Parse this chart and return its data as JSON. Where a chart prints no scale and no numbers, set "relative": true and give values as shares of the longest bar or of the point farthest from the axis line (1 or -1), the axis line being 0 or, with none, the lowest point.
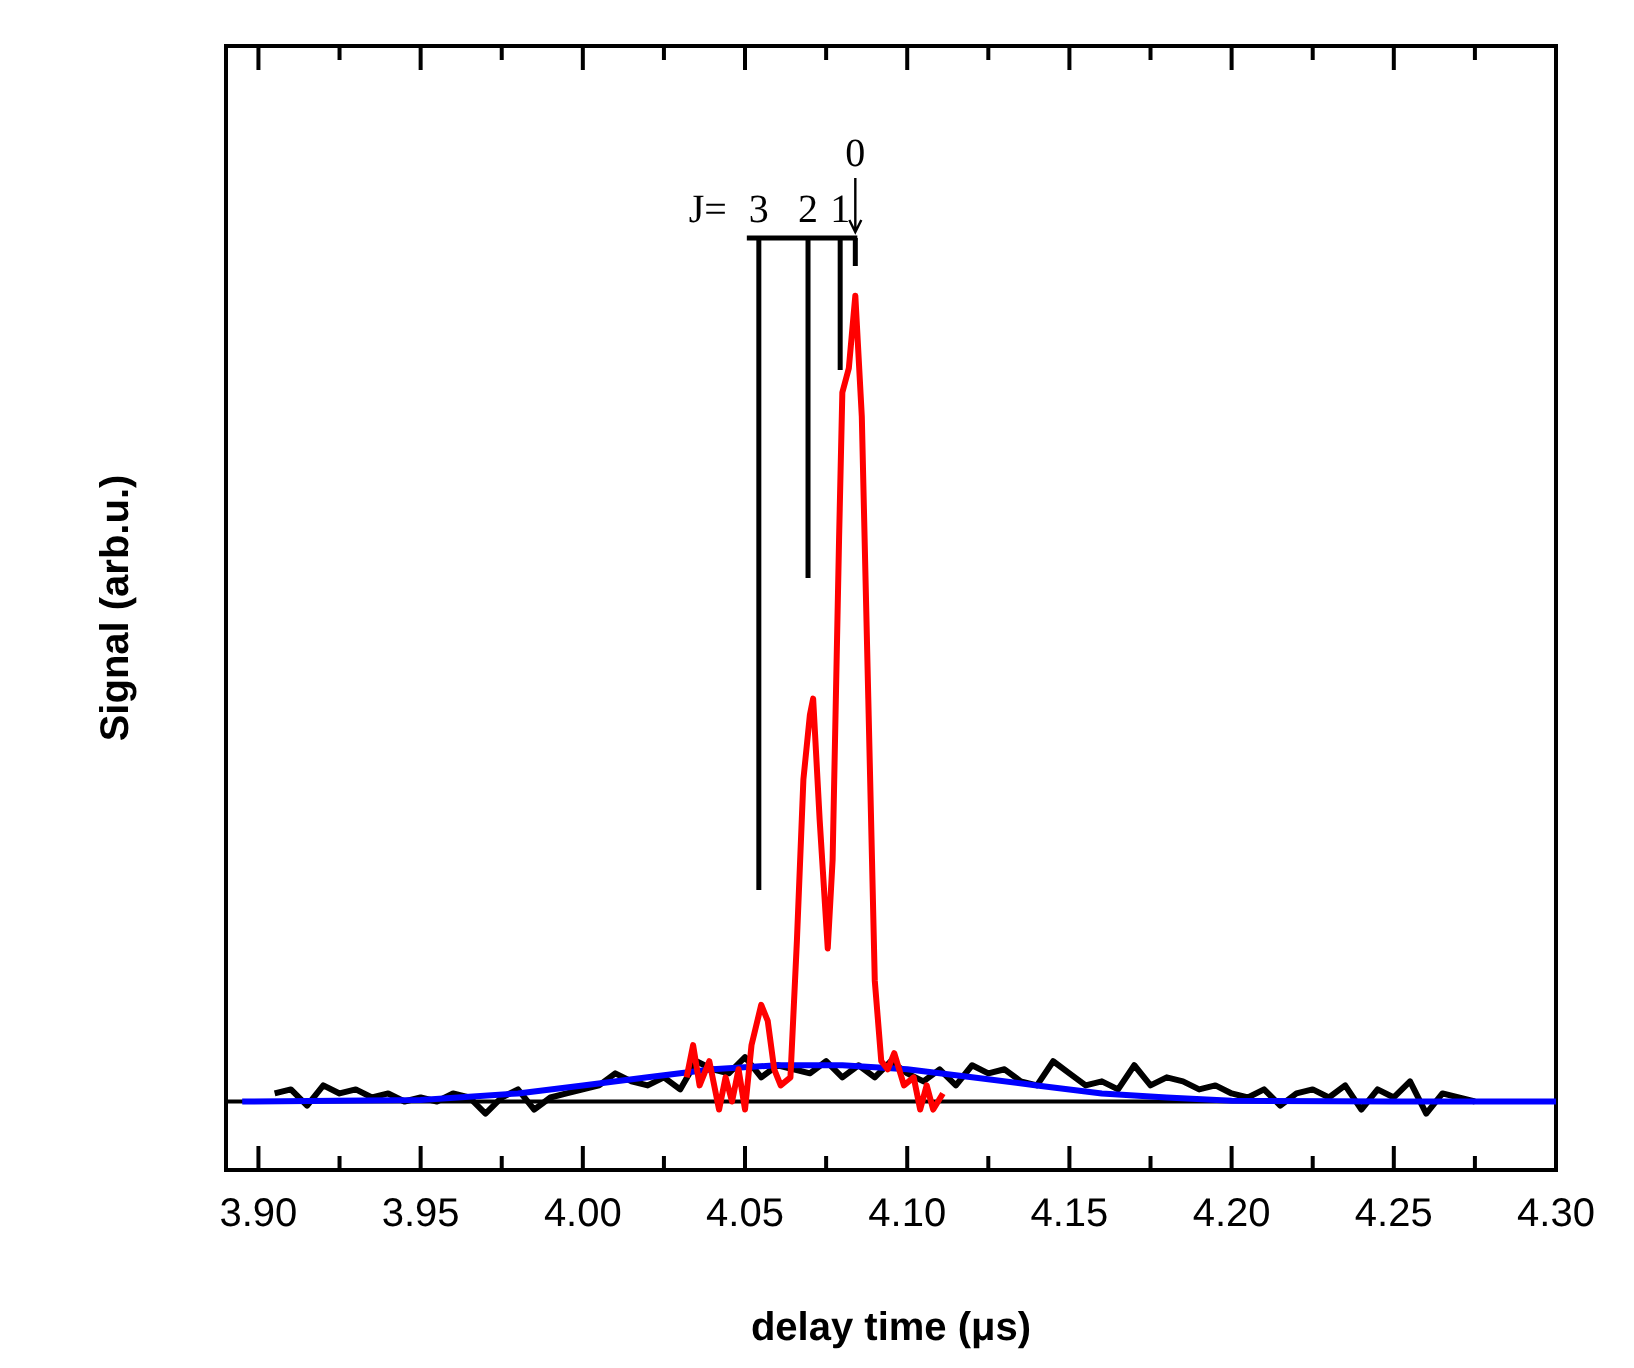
{
  "chart_data": {
    "type": "line",
    "relative": true,
    "xlabel": "delay time (μs)",
    "ylabel": "Signal (arb.u.)",
    "xlim": [
      3.89,
      4.3
    ],
    "xticks": [
      {
        "value": 3.9,
        "label": "3.90"
      },
      {
        "value": 3.95,
        "label": "3.95"
      },
      {
        "value": 4.0,
        "label": "4.00"
      },
      {
        "value": 4.05,
        "label": "4.05"
      },
      {
        "value": 4.1,
        "label": "4.10"
      },
      {
        "value": 4.15,
        "label": "4.15"
      },
      {
        "value": 4.2,
        "label": "4.20"
      },
      {
        "value": 4.25,
        "label": "4.25"
      },
      {
        "value": 4.3,
        "label": "4.30"
      }
    ],
    "grid": false,
    "line_style": "solid",
    "marker": "none",
    "series": [
      {
        "color": "#000000",
        "x": [
          3.905,
          3.91,
          3.915,
          3.92,
          3.925,
          3.93,
          3.935,
          3.94,
          3.945,
          3.95,
          3.955,
          3.96,
          3.965,
          3.97,
          3.975,
          3.98,
          3.985,
          3.99,
          3.995,
          4.0,
          4.005,
          4.01,
          4.015,
          4.02,
          4.025,
          4.03,
          4.035,
          4.04,
          4.045,
          4.05,
          4.055,
          4.06,
          4.065,
          4.07,
          4.075,
          4.08,
          4.085,
          4.09,
          4.095,
          4.1,
          4.105,
          4.11,
          4.115,
          4.12,
          4.125,
          4.13,
          4.135,
          4.14,
          4.145,
          4.15,
          4.155,
          4.16,
          4.165,
          4.17,
          4.175,
          4.18,
          4.185,
          4.19,
          4.195,
          4.2,
          4.205,
          4.21,
          4.215,
          4.22,
          4.225,
          4.23,
          4.235,
          4.24,
          4.245,
          4.25,
          4.255,
          4.26,
          4.265,
          4.27,
          4.275
        ],
        "values": [
          0.01,
          0.015,
          -0.005,
          0.02,
          0.01,
          0.015,
          0.005,
          0.01,
          0.0,
          0.005,
          0.0,
          0.01,
          0.005,
          -0.015,
          0.005,
          0.015,
          -0.01,
          0.005,
          0.01,
          0.015,
          0.02,
          0.035,
          0.025,
          0.02,
          0.03,
          0.015,
          0.05,
          0.04,
          0.035,
          0.055,
          0.03,
          0.045,
          0.04,
          0.035,
          0.05,
          0.03,
          0.045,
          0.03,
          0.05,
          0.035,
          0.025,
          0.04,
          0.02,
          0.045,
          0.035,
          0.04,
          0.025,
          0.02,
          0.05,
          0.035,
          0.02,
          0.025,
          0.015,
          0.045,
          0.02,
          0.03,
          0.025,
          0.015,
          0.02,
          0.01,
          0.005,
          0.015,
          -0.005,
          0.01,
          0.015,
          0.005,
          0.02,
          -0.01,
          0.015,
          0.005,
          0.025,
          -0.015,
          0.01,
          0.005,
          0.0
        ]
      },
      {
        "color": "#0000ff",
        "x": [
          3.895,
          3.95,
          3.98,
          4.0,
          4.02,
          4.04,
          4.06,
          4.08,
          4.1,
          4.12,
          4.14,
          4.16,
          4.18,
          4.2,
          4.25,
          4.3
        ],
        "values": [
          0,
          0.002,
          0.01,
          0.02,
          0.03,
          0.04,
          0.045,
          0.045,
          0.04,
          0.03,
          0.02,
          0.01,
          0.005,
          0.001,
          0,
          0
        ]
      },
      {
        "color": "#ff0000",
        "x": [
          4.032,
          4.034,
          4.036,
          4.039,
          4.042,
          4.044,
          4.046,
          4.048,
          4.05,
          4.052,
          4.055,
          4.057,
          4.059,
          4.061,
          4.064,
          4.066,
          4.068,
          4.07,
          4.071,
          4.073,
          4.0755,
          4.077,
          4.079,
          4.08,
          4.082,
          4.084,
          4.086,
          4.088,
          4.09,
          4.092,
          4.094,
          4.096,
          4.099,
          4.102,
          4.104,
          4.106,
          4.108,
          4.111
        ],
        "values": [
          0.03,
          0.07,
          0.02,
          0.05,
          -0.01,
          0.03,
          0.0,
          0.04,
          -0.01,
          0.07,
          0.12,
          0.1,
          0.04,
          0.02,
          0.03,
          0.2,
          0.4,
          0.48,
          0.5,
          0.35,
          0.19,
          0.3,
          0.7,
          0.88,
          0.91,
          1.0,
          0.85,
          0.5,
          0.15,
          0.05,
          0.04,
          0.06,
          0.02,
          0.03,
          -0.01,
          0.02,
          -0.01,
          0.01
        ]
      }
    ],
    "annotations": [
      "J=",
      "3",
      "2",
      "1",
      "0"
    ]
  }
}
